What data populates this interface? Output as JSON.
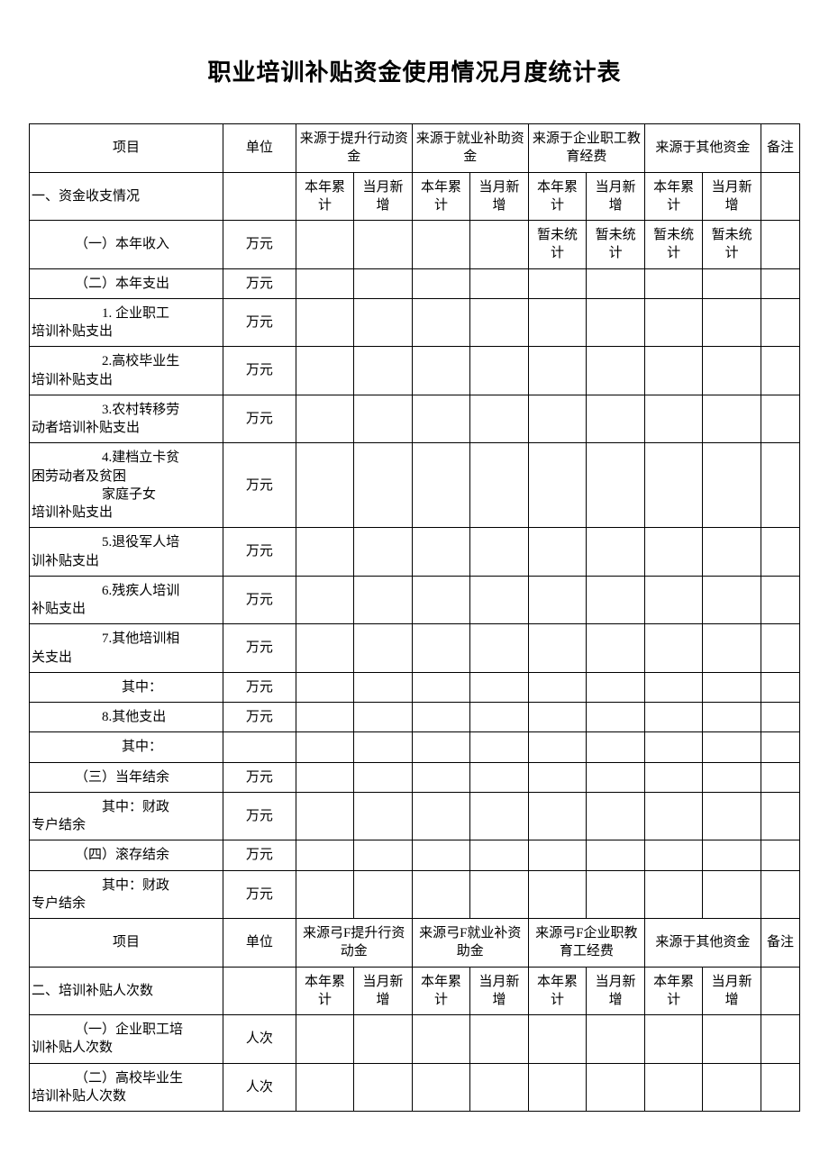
{
  "title": "职业培训补贴资金使用情况月度统计表",
  "hdr1": {
    "item": "项目",
    "unit": "单位",
    "src1": "来源于提升行动资金",
    "src2": "来源于就业补助资金",
    "src3": "来源于企业职工教育经费",
    "src4": "来源于其他资金",
    "note": "备注"
  },
  "sub": {
    "cum": "本年累计",
    "new": "当月新增"
  },
  "sec1_title": "一、资金收支情况",
  "pending": "暂未统计",
  "unit_wy": "万元",
  "unit_rc": "人次",
  "rows1": {
    "r1": "（一）本年收入",
    "r2": "（二）本年支出",
    "r3a": "1. 企业职工",
    "r3b": "培训补贴支出",
    "r4a": "2.高校毕业生",
    "r4b": "培训补贴支出",
    "r5a": "3.农村转移劳",
    "r5b": "动者培训补贴支出",
    "r6a": "4.建档立卡贫",
    "r6b": "困劳动者及贫困",
    "r6c": "家庭子女",
    "r6d": "培训补贴支出",
    "r7a": "5.退役军人培",
    "r7b": "训补贴支出",
    "r8a": "6.残疾人培训",
    "r8b": "补贴支出",
    "r9a": "7.其他培训相",
    "r9b": "关支出",
    "r10": "其中：",
    "r11": "8.其他支出",
    "r12": "其中：",
    "r13": "（三）当年结余",
    "r14a": "其中：财政",
    "r14b": "专户结余",
    "r15": "（四）滚存结余",
    "r16a": "其中：财政",
    "r16b": "专户结余"
  },
  "hdr2": {
    "item": "项目",
    "unit": "单位",
    "src1": "来源弓F提升行资动金",
    "src2": "来源弓F就业补资助金",
    "src3": "来源弓F企业职教育工经费",
    "src4": "来源于其他资金",
    "note": "备注"
  },
  "sec2_title": "二、培训补贴人次数",
  "rows2": {
    "r1a": "（一）企业职工培",
    "r1b": "训补贴人次数",
    "r2a": "（二）高校毕业生",
    "r2b": "培训补贴人次数"
  }
}
